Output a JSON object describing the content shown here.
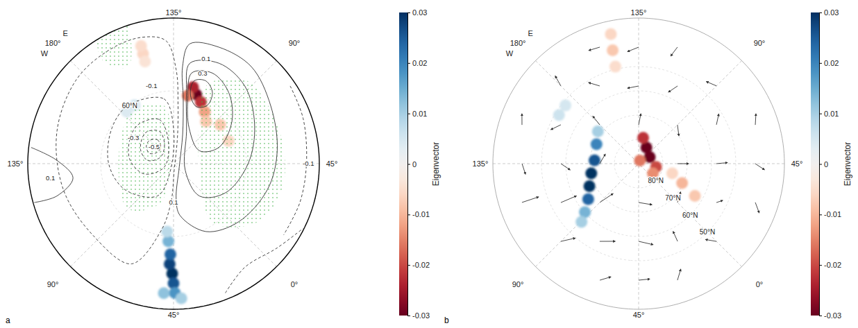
{
  "chart_data": [
    {
      "type": "map",
      "panel_label": "a",
      "lat_range": [
        30,
        90
      ],
      "lon_labels": [
        {
          "value": 135,
          "label": "135°"
        },
        {
          "value": 90,
          "label": "90°"
        },
        {
          "value": 45,
          "label": "45°"
        },
        {
          "value": 0,
          "label": "0°"
        },
        {
          "value": -45,
          "label": "45°"
        },
        {
          "value": -90,
          "label": "90°"
        },
        {
          "value": -135,
          "label": "135°"
        },
        {
          "value": 180,
          "label": "180°"
        }
      ],
      "east_label": "E",
      "west_label": "W",
      "lat_labels": [
        {
          "value": 60,
          "label": "60°N"
        }
      ],
      "colorbar_label": "Eigenvector",
      "colorbar_range": [
        -0.03,
        0.03
      ],
      "colorbar_ticks": [
        0.03,
        0.02,
        0.01,
        0,
        -0.01,
        -0.02,
        -0.03
      ],
      "cells": [
        [
          -45.7,
          44.7,
          0.03
        ],
        [
          -47.2,
          48.6,
          0.028
        ],
        [
          -47,
          52.6,
          0.024
        ],
        [
          -48.8,
          57.9,
          0.014
        ],
        [
          -50.4,
          61.9,
          0.008
        ],
        [
          -45,
          40.7,
          0.026
        ],
        [
          -44.4,
          36.7,
          0.018
        ],
        [
          -49.3,
          36.5,
          0.012
        ],
        [
          -41.7,
          34.4,
          0.01
        ],
        [
          168.7,
          61.1,
          0.005
        ],
        [
          177,
          61.3,
          0.004
        ],
        [
          150.5,
          43.0,
          -0.006
        ],
        [
          150.4,
          39.7,
          -0.005
        ],
        [
          150.6,
          46.3,
          -0.004
        ],
        [
          116.9,
          60.0,
          -0.03
        ],
        [
          120.7,
          57.5,
          -0.024
        ],
        [
          111.1,
          62.3,
          -0.022
        ],
        [
          123.2,
          61.4,
          -0.016
        ],
        [
          104,
          65.1,
          -0.012
        ],
        [
          97.4,
          68.1,
          -0.008
        ],
        [
          84.8,
          65.0,
          -0.008
        ],
        [
          67.4,
          65.5,
          -0.006
        ]
      ],
      "contours": [
        {
          "level": -0.5,
          "points": [
            [
              -179.2,
              76.2
            ],
            [
              169,
              78.1
            ],
            [
              172.6,
              81.3
            ],
            [
              -168.2,
              81.7
            ],
            [
              -158.4,
              79.3
            ],
            [
              -166.8,
              76.8
            ],
            [
              -179.2,
              76.2
            ]
          ]
        },
        {
          "level": -0.4,
          "points": [
            [
              176.9,
              72.8
            ],
            [
              158.7,
              75.4
            ],
            [
              160,
              81.2
            ],
            [
              -161.6,
              84.0
            ],
            [
              -142.1,
              79.3
            ],
            [
              -158.3,
              75.2
            ],
            [
              176.9,
              72.8
            ]
          ]
        },
        {
          "level": -0.3,
          "points": [
            [
              177.5,
              68.3
            ],
            [
              152.9,
              70.9
            ],
            [
              147.9,
              80.4
            ],
            [
              -115.3,
              86.0
            ],
            [
              -115.4,
              77.3
            ],
            [
              -139.3,
              72.1
            ],
            [
              -162.2,
              69.6
            ],
            [
              177.5,
              68.3
            ]
          ]
        },
        {
          "level": -0.2,
          "points": [
            [
              172.9,
              59.6
            ],
            [
              143.5,
              63.0
            ],
            [
              135,
              75.3
            ],
            [
              -66.8,
              85.7
            ],
            [
              -71.6,
              75.1
            ],
            [
              -106.9,
              67.3
            ],
            [
              -135,
              63.3
            ],
            [
              -165.1,
              60.7
            ],
            [
              172.9,
              59.6
            ]
          ]
        },
        {
          "level": -0.1,
          "points": [
            [
              149.4,
              36.3
            ],
            [
              164.7,
              36.2
            ],
            [
              -175.9,
              37.1
            ],
            [
              -150.5,
              40.2
            ],
            [
              -121.8,
              43.4
            ],
            [
              -93.7,
              45.6
            ],
            [
              -67.8,
              45.2
            ],
            [
              -55.8,
              61.5
            ],
            [
              -48.8,
              74.0
            ],
            [
              -39.3,
              87.3
            ],
            [
              126.5,
              79.2
            ],
            [
              130.6,
              65.9
            ],
            [
              133.4,
              51.3
            ],
            [
              138.6,
              39.2
            ],
            [
              149.4,
              36.3
            ]
          ]
        },
        {
          "level": 0.1,
          "points": [
            [
              127.3,
              40.2
            ],
            [
              113.7,
              38.5
            ],
            [
              96.3,
              38.8
            ],
            [
              76,
              43.4
            ],
            [
              52.1,
              47.0
            ],
            [
              29.6,
              49.9
            ],
            [
              3,
              54.1
            ],
            [
              -19.5,
              59.0
            ],
            [
              -37.9,
              68.5
            ],
            [
              -40.8,
              75.3
            ],
            [
              15.9,
              87.3
            ],
            [
              117.7,
              77.4
            ],
            [
              126.5,
              63.0
            ],
            [
              129.7,
              49.8
            ],
            [
              127.3,
              40.2
            ]
          ]
        },
        {
          "level": 0.2,
          "points": [
            [
              125.8,
              48.1
            ],
            [
              110.7,
              44.6
            ],
            [
              92.5,
              46.6
            ],
            [
              70.6,
              53.0
            ],
            [
              45,
              59.3
            ],
            [
              15.6,
              65.5
            ],
            [
              -6.3,
              72.9
            ],
            [
              15.9,
              84.5
            ],
            [
              113.2,
              75.6
            ],
            [
              124.7,
              60.2
            ],
            [
              125.8,
              48.1
            ]
          ]
        },
        {
          "level": 0.3,
          "points": [
            [
              123.7,
              51.9
            ],
            [
              111.8,
              49.4
            ],
            [
              97.3,
              52.9
            ],
            [
              80.8,
              60.4
            ],
            [
              64.7,
              70.2
            ],
            [
              71.6,
              78.1
            ],
            [
              111.4,
              74.0
            ],
            [
              122.6,
              62.7
            ],
            [
              123.7,
              51.9
            ]
          ]
        },
        {
          "level": 0.4,
          "points": [
            [
              121,
              54.8
            ],
            [
              113.7,
              53.4
            ],
            [
              106.4,
              56.6
            ],
            [
              105,
              62.3
            ],
            [
              113.3,
              64.7
            ],
            [
              121.5,
              60.4
            ],
            [
              121,
              54.8
            ]
          ]
        },
        {
          "level": -0.1,
          "points": [
            [
              78.7,
              32.3
            ],
            [
              64.3,
              33.5
            ],
            [
              45,
              35.3
            ],
            [
              27.9,
              35.6
            ],
            [
              12.1,
              36.0
            ]
          ]
        },
        {
          "level": 0.1,
          "points": [
            [
              -141.5,
              31.0
            ],
            [
              -136.6,
              42.0
            ],
            [
              -126.9,
              48.2
            ],
            [
              -119.5,
              40.2
            ],
            [
              -119.4,
              30.5
            ]
          ]
        },
        {
          "level": -0.1,
          "points": [
            [
              -23.2,
              32.6
            ],
            [
              -10.5,
              38.2
            ],
            [
              5.9,
              35.0
            ],
            [
              18.4,
              30.4
            ]
          ]
        }
      ],
      "contour_labels": [
        {
          "value": -0.1,
          "lon": 150.8,
          "lat": 56.7
        },
        {
          "value": 0.1,
          "lon": 117.8,
          "lat": 44.8
        },
        {
          "value": 0.3,
          "lon": 117.2,
          "lat": 50.8
        },
        {
          "value": -0.3,
          "lon": -167.8,
          "lat": 70.3
        },
        {
          "value": -0.5,
          "lon": -175.9,
          "lat": 79.4
        },
        {
          "value": 0.1,
          "lon": -45,
          "lat": 74.0
        },
        {
          "value": -0.1,
          "lon": 45,
          "lat": 34.5
        },
        {
          "value": 0.1,
          "lon": -128.4,
          "lat": 39.0
        }
      ],
      "stippling": [
        [
          [
            112.4,
            55.3
          ],
          [
            94.8,
            44.6
          ],
          [
            65.6,
            44.4
          ],
          [
            35,
            44.0
          ],
          [
            10.3,
            47.8
          ],
          [
            -11.3,
            61.1
          ],
          [
            31,
            79.0
          ],
          [
            105.3,
            68.5
          ]
        ],
        [
          [
            174.1,
            62.5
          ],
          [
            144.5,
            65.7
          ],
          [
            161.6,
            87.0
          ],
          [
            -63.4,
            73.1
          ],
          [
            -90,
            63.6
          ],
          [
            -135,
            67.3
          ]
        ],
        [
          [
            163.1,
            25
          ],
          [
            153.8,
            28.0
          ],
          [
            160,
            45.9
          ],
          [
            169.5,
            38.2
          ]
        ]
      ]
    },
    {
      "type": "map",
      "panel_label": "b",
      "lat_range": [
        30,
        90
      ],
      "lon_labels": [
        {
          "value": 135,
          "label": "135°"
        },
        {
          "value": 90,
          "label": "90°"
        },
        {
          "value": 45,
          "label": "45°"
        },
        {
          "value": 0,
          "label": "0°"
        },
        {
          "value": -45,
          "label": "45°"
        },
        {
          "value": -90,
          "label": "90°"
        },
        {
          "value": -135,
          "label": "135°"
        },
        {
          "value": 180,
          "label": "180°"
        }
      ],
      "east_label": "E",
      "west_label": "W",
      "lat_labels": [
        {
          "value": 80,
          "label": "80°N"
        },
        {
          "value": 70,
          "label": "70°N"
        },
        {
          "value": 60,
          "label": "60°N"
        },
        {
          "value": 50,
          "label": "50°N"
        }
      ],
      "colorbar_label": "Eigenvector",
      "colorbar_range": [
        -0.03,
        0.03
      ],
      "colorbar_ticks": [
        0.03,
        0.02,
        0.01,
        0,
        -0.01,
        -0.02,
        -0.03
      ],
      "cells": [
        [
          -159.8,
          70.9,
          0.02
        ],
        [
          -139.2,
          71.8,
          0.026
        ],
        [
          -123.4,
          70.1,
          0.03
        ],
        [
          -110.3,
          67.7,
          0.03
        ],
        [
          -99.8,
          64.6,
          0.024
        ],
        [
          -92.9,
          60.2,
          0.014
        ],
        [
          -89.4,
          56.4,
          0.01
        ],
        [
          -173.4,
          68.6,
          0.01
        ],
        [
          -166.4,
          51.6,
          0.006
        ],
        [
          -173.5,
          51.5,
          0.005
        ],
        [
          109.4,
          82.6,
          -0.03
        ],
        [
          75.5,
          84.7,
          -0.03
        ],
        [
          125.1,
          79.2,
          -0.022
        ],
        [
          34.5,
          82.7,
          -0.02
        ],
        [
          10.7,
          82.9,
          -0.014
        ],
        [
          113.2,
          88.6,
          -0.016
        ],
        [
          20.9,
          70.4,
          -0.01
        ],
        [
          15.1,
          63.3,
          -0.008
        ],
        [
          28.9,
          75.6,
          -0.006
        ],
        [
          147.1,
          35.4,
          -0.006
        ],
        [
          147.9,
          42.1,
          -0.008
        ],
        [
          148.5,
          48.9,
          -0.005
        ]
      ],
      "vectors": [
        [
          153.4,
          39.4,
          1.04,
          -0.03
        ],
        [
          135,
          42.0,
          1.0,
          0.4
        ],
        [
          116.6,
          39.4,
          0.32,
          0.95
        ],
        [
          180,
          44.7,
          -0.28,
          -0.99
        ],
        [
          161.6,
          54.2,
          0.76,
          -0.72
        ],
        [
          135,
          58.0,
          1.0,
          0.2
        ],
        [
          108.4,
          54.2,
          0.49,
          0.87
        ],
        [
          90,
          44.7,
          0.93,
          0.37
        ],
        [
          -153.4,
          39.4,
          -0.95,
          -0.32
        ],
        [
          -161.6,
          54.2,
          0.8,
          -0.61
        ],
        [
          180,
          67.4,
          -0.11,
          -1.0
        ],
        [
          135,
          74.0,
          -0.2,
          -1.0
        ],
        [
          90,
          67.4,
          -0.79,
          0.61
        ],
        [
          71.6,
          54.2,
          0.78,
          -0.63
        ],
        [
          63.4,
          39.4,
          0.93,
          -0.37
        ],
        [
          -135,
          42.0,
          0.95,
          0.31
        ],
        [
          -135,
          58.0,
          0.56,
          0.83
        ],
        [
          -135,
          74.0,
          -0.87,
          0.5
        ],
        [
          45,
          74.0,
          0,
          -1.0
        ],
        [
          45,
          58.0,
          0.09,
          -1.0
        ],
        [
          45,
          42.0,
          -0.55,
          -0.83
        ],
        [
          -116.6,
          39.4,
          0,
          1.58
        ],
        [
          -108.4,
          54.2,
          0.09,
          1.52
        ],
        [
          -90,
          67.4,
          0.28,
          1.41
        ],
        [
          -45,
          74.0,
          1.2,
          -0.2
        ],
        [
          0,
          67.4,
          0.88,
          0.47
        ],
        [
          18.4,
          54.2,
          0.43,
          -0.42
        ],
        [
          26.6,
          39.4,
          -0.78,
          -0.63
        ],
        [
          -90,
          44.7,
          0.71,
          1.13
        ],
        [
          -71.6,
          54.2,
          1.25,
          0.63
        ],
        [
          -45,
          58.0,
          1.3,
          -0.3
        ],
        [
          -18.4,
          54.2,
          0.04,
          0.98
        ],
        [
          0,
          44.7,
          -0.58,
          0.82
        ],
        [
          -63.4,
          39.4,
          0.85,
          0.6
        ],
        [
          -45,
          42.0,
          1.0,
          0.1
        ],
        [
          -26.6,
          39.4,
          0.6,
          0.85
        ]
      ]
    }
  ]
}
